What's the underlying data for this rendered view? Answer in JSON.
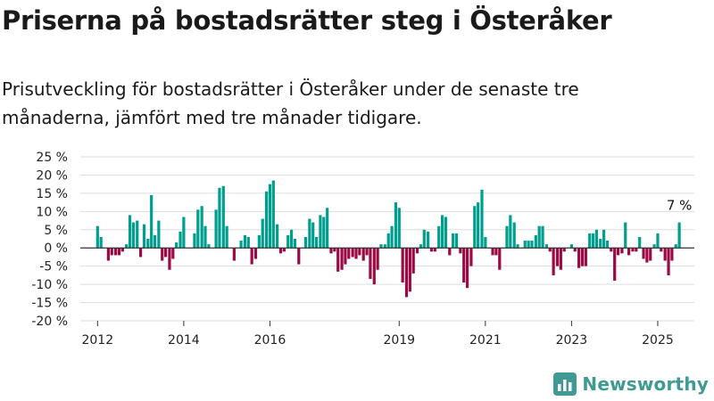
{
  "header": {
    "title": "Priserna på bostadsrätter steg i Österåker",
    "subtitle": "Prisutveckling för bostadsrätter i Österåker under de senaste tre månaderna, jämfört med tre månader tidigare."
  },
  "brand": {
    "name": "Newsworthy",
    "color": "#3e9a92",
    "icon": "newsworthy-logo-icon"
  },
  "colors": {
    "positive": "#009e8f",
    "negative": "#9b0a45",
    "grid": "#dddddd",
    "zero": "#333333"
  },
  "chart_data": {
    "type": "bar",
    "ylim": [
      -20,
      25
    ],
    "yticks": [
      25,
      20,
      15,
      10,
      5,
      0,
      -5,
      -10,
      -15,
      -20
    ],
    "ytick_labels": [
      "25 %",
      "20 %",
      "15 %",
      "10 %",
      "5 %",
      "0 %",
      "-5 %",
      "-10 %",
      "-15 %",
      "-20 %"
    ],
    "xticks": [
      {
        "label": "2012",
        "x": 2012.0
      },
      {
        "label": "2014",
        "x": 2014.0
      },
      {
        "label": "2016",
        "x": 2016.0
      },
      {
        "label": "2019",
        "x": 2019.0
      },
      {
        "label": "2021",
        "x": 2021.0
      },
      {
        "label": "2023",
        "x": 2023.0
      },
      {
        "label": "2025",
        "x": 2025.0
      }
    ],
    "grid": true,
    "annotation": {
      "text": "7 %",
      "x": 2025.5,
      "y": 7
    },
    "points": [
      {
        "x": 2012.0,
        "y": 6
      },
      {
        "x": 2012.08,
        "y": 3
      },
      {
        "x": 2012.25,
        "y": -3.5
      },
      {
        "x": 2012.33,
        "y": -2
      },
      {
        "x": 2012.42,
        "y": -2
      },
      {
        "x": 2012.5,
        "y": -2
      },
      {
        "x": 2012.58,
        "y": -1
      },
      {
        "x": 2012.67,
        "y": 1
      },
      {
        "x": 2012.75,
        "y": 9
      },
      {
        "x": 2012.83,
        "y": 7
      },
      {
        "x": 2012.92,
        "y": 7.5
      },
      {
        "x": 2013.0,
        "y": -2.5
      },
      {
        "x": 2013.08,
        "y": 6.5
      },
      {
        "x": 2013.17,
        "y": 2.5
      },
      {
        "x": 2013.25,
        "y": 14.5
      },
      {
        "x": 2013.33,
        "y": 3.5
      },
      {
        "x": 2013.42,
        "y": 7.5
      },
      {
        "x": 2013.5,
        "y": -3.5
      },
      {
        "x": 2013.58,
        "y": -2.5
      },
      {
        "x": 2013.67,
        "y": -6
      },
      {
        "x": 2013.75,
        "y": -3
      },
      {
        "x": 2013.83,
        "y": 1.5
      },
      {
        "x": 2013.92,
        "y": 4.5
      },
      {
        "x": 2014.0,
        "y": 8.5
      },
      {
        "x": 2014.25,
        "y": 4
      },
      {
        "x": 2014.33,
        "y": 10.5
      },
      {
        "x": 2014.42,
        "y": 11.5
      },
      {
        "x": 2014.5,
        "y": 6
      },
      {
        "x": 2014.58,
        "y": 1
      },
      {
        "x": 2014.75,
        "y": 10.5
      },
      {
        "x": 2014.83,
        "y": 16.5
      },
      {
        "x": 2014.92,
        "y": 17
      },
      {
        "x": 2015.0,
        "y": 6
      },
      {
        "x": 2015.17,
        "y": -3.5
      },
      {
        "x": 2015.33,
        "y": 2
      },
      {
        "x": 2015.42,
        "y": 3.5
      },
      {
        "x": 2015.5,
        "y": 3
      },
      {
        "x": 2015.58,
        "y": -4.5
      },
      {
        "x": 2015.67,
        "y": -3
      },
      {
        "x": 2015.75,
        "y": 3.5
      },
      {
        "x": 2015.83,
        "y": 8
      },
      {
        "x": 2015.92,
        "y": 15.5
      },
      {
        "x": 2016.0,
        "y": 17.5
      },
      {
        "x": 2016.08,
        "y": 18.5
      },
      {
        "x": 2016.17,
        "y": 6.5
      },
      {
        "x": 2016.25,
        "y": -1.5
      },
      {
        "x": 2016.33,
        "y": -1
      },
      {
        "x": 2016.42,
        "y": 3.5
      },
      {
        "x": 2016.5,
        "y": 5
      },
      {
        "x": 2016.58,
        "y": 2.5
      },
      {
        "x": 2016.67,
        "y": -4.5
      },
      {
        "x": 2016.83,
        "y": 3
      },
      {
        "x": 2016.92,
        "y": 8
      },
      {
        "x": 2017.0,
        "y": 7
      },
      {
        "x": 2017.08,
        "y": 3
      },
      {
        "x": 2017.17,
        "y": 9
      },
      {
        "x": 2017.25,
        "y": 8.5
      },
      {
        "x": 2017.33,
        "y": 11
      },
      {
        "x": 2017.42,
        "y": -1.5
      },
      {
        "x": 2017.5,
        "y": -1
      },
      {
        "x": 2017.58,
        "y": -6.5
      },
      {
        "x": 2017.67,
        "y": -6
      },
      {
        "x": 2017.75,
        "y": -4.5
      },
      {
        "x": 2017.83,
        "y": -3
      },
      {
        "x": 2017.92,
        "y": -2.5
      },
      {
        "x": 2018.0,
        "y": -3
      },
      {
        "x": 2018.08,
        "y": -2
      },
      {
        "x": 2018.17,
        "y": -3.5
      },
      {
        "x": 2018.25,
        "y": -2
      },
      {
        "x": 2018.33,
        "y": -8.5
      },
      {
        "x": 2018.42,
        "y": -10
      },
      {
        "x": 2018.5,
        "y": -6
      },
      {
        "x": 2018.58,
        "y": 1
      },
      {
        "x": 2018.67,
        "y": 1
      },
      {
        "x": 2018.75,
        "y": 4
      },
      {
        "x": 2018.83,
        "y": 6
      },
      {
        "x": 2018.92,
        "y": 12.5
      },
      {
        "x": 2019.0,
        "y": 11
      },
      {
        "x": 2019.08,
        "y": -9.5
      },
      {
        "x": 2019.17,
        "y": -13.5
      },
      {
        "x": 2019.25,
        "y": -12
      },
      {
        "x": 2019.33,
        "y": -7
      },
      {
        "x": 2019.42,
        "y": -1.5
      },
      {
        "x": 2019.5,
        "y": 1
      },
      {
        "x": 2019.58,
        "y": 5
      },
      {
        "x": 2019.67,
        "y": 4.5
      },
      {
        "x": 2019.75,
        "y": -1
      },
      {
        "x": 2019.83,
        "y": -1
      },
      {
        "x": 2019.92,
        "y": 6
      },
      {
        "x": 2020.0,
        "y": 9
      },
      {
        "x": 2020.08,
        "y": 8.5
      },
      {
        "x": 2020.17,
        "y": -2
      },
      {
        "x": 2020.25,
        "y": 4
      },
      {
        "x": 2020.33,
        "y": 4
      },
      {
        "x": 2020.42,
        "y": -1.5
      },
      {
        "x": 2020.5,
        "y": -9.5
      },
      {
        "x": 2020.58,
        "y": -11
      },
      {
        "x": 2020.67,
        "y": -5
      },
      {
        "x": 2020.75,
        "y": 11.5
      },
      {
        "x": 2020.83,
        "y": 12.5
      },
      {
        "x": 2020.92,
        "y": 16
      },
      {
        "x": 2021.0,
        "y": 3
      },
      {
        "x": 2021.17,
        "y": -2
      },
      {
        "x": 2021.25,
        "y": -2
      },
      {
        "x": 2021.33,
        "y": -6
      },
      {
        "x": 2021.5,
        "y": 6
      },
      {
        "x": 2021.58,
        "y": 9
      },
      {
        "x": 2021.67,
        "y": 7
      },
      {
        "x": 2021.75,
        "y": 1
      },
      {
        "x": 2021.92,
        "y": 2
      },
      {
        "x": 2022.0,
        "y": 2
      },
      {
        "x": 2022.08,
        "y": 2
      },
      {
        "x": 2022.17,
        "y": 3.5
      },
      {
        "x": 2022.25,
        "y": 6
      },
      {
        "x": 2022.33,
        "y": 6
      },
      {
        "x": 2022.42,
        "y": 1
      },
      {
        "x": 2022.5,
        "y": -1
      },
      {
        "x": 2022.58,
        "y": -7.5
      },
      {
        "x": 2022.67,
        "y": -5
      },
      {
        "x": 2022.75,
        "y": -6
      },
      {
        "x": 2022.83,
        "y": -1
      },
      {
        "x": 2023.0,
        "y": 1
      },
      {
        "x": 2023.08,
        "y": -1
      },
      {
        "x": 2023.17,
        "y": -5.5
      },
      {
        "x": 2023.25,
        "y": -5
      },
      {
        "x": 2023.33,
        "y": -5
      },
      {
        "x": 2023.42,
        "y": 4
      },
      {
        "x": 2023.5,
        "y": 4
      },
      {
        "x": 2023.58,
        "y": 5
      },
      {
        "x": 2023.67,
        "y": 2.5
      },
      {
        "x": 2023.75,
        "y": 5
      },
      {
        "x": 2023.83,
        "y": 2
      },
      {
        "x": 2023.92,
        "y": -1
      },
      {
        "x": 2024.0,
        "y": -9
      },
      {
        "x": 2024.08,
        "y": -2
      },
      {
        "x": 2024.17,
        "y": -1.5
      },
      {
        "x": 2024.25,
        "y": 7
      },
      {
        "x": 2024.33,
        "y": -2
      },
      {
        "x": 2024.42,
        "y": -1
      },
      {
        "x": 2024.5,
        "y": -1
      },
      {
        "x": 2024.58,
        "y": 3
      },
      {
        "x": 2024.67,
        "y": -3
      },
      {
        "x": 2024.75,
        "y": -4
      },
      {
        "x": 2024.83,
        "y": -3.5
      },
      {
        "x": 2024.92,
        "y": 1
      },
      {
        "x": 2025.0,
        "y": 4
      },
      {
        "x": 2025.08,
        "y": -1
      },
      {
        "x": 2025.17,
        "y": -3.5
      },
      {
        "x": 2025.25,
        "y": -7.5
      },
      {
        "x": 2025.33,
        "y": -3.5
      },
      {
        "x": 2025.42,
        "y": 1
      },
      {
        "x": 2025.5,
        "y": 7
      }
    ]
  }
}
